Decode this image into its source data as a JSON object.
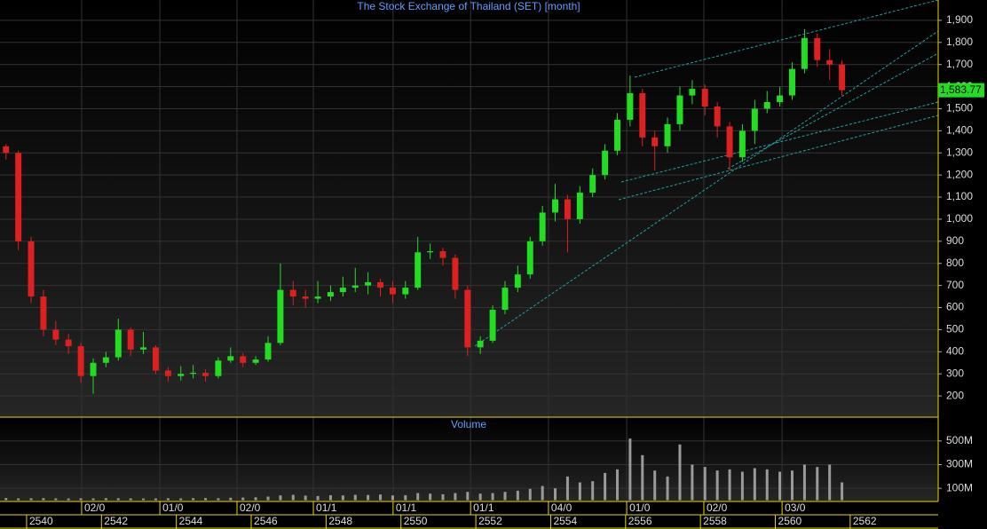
{
  "chart_data": {
    "type": "candlestick",
    "title": "The Stock Exchange of Thailand (SET) [month]",
    "volume_title": "Volume",
    "colors": {
      "up": "#22dd22",
      "down": "#dd2020",
      "volume": "#9a9a9a",
      "last": "#22dd22"
    },
    "x": [
      2539.45,
      2539.78,
      2540.12,
      2540.45,
      2540.78,
      2541.12,
      2541.45,
      2541.78,
      2542.12,
      2542.45,
      2542.78,
      2543.12,
      2543.45,
      2543.78,
      2544.12,
      2544.45,
      2544.78,
      2545.12,
      2545.45,
      2545.78,
      2546.12,
      2546.45,
      2546.78,
      2547.12,
      2547.45,
      2547.78,
      2548.12,
      2548.45,
      2548.78,
      2549.12,
      2549.45,
      2549.78,
      2550.12,
      2550.45,
      2550.78,
      2551.12,
      2551.45,
      2551.78,
      2552.12,
      2552.45,
      2552.78,
      2553.12,
      2553.45,
      2553.78,
      2554.12,
      2554.45,
      2554.78,
      2555.12,
      2555.45,
      2555.78,
      2556.12,
      2556.45,
      2556.78,
      2557.12,
      2557.45,
      2557.78,
      2558.12,
      2558.45,
      2558.78,
      2559.12,
      2559.45,
      2559.78,
      2560.12,
      2560.45,
      2560.78,
      2561.12,
      2561.45,
      2561.78
    ],
    "open": [
      1330,
      1300,
      900,
      650,
      500,
      455,
      425,
      290,
      350,
      375,
      500,
      410,
      420,
      315,
      290,
      300,
      305,
      290,
      360,
      380,
      350,
      365,
      440,
      680,
      650,
      640,
      650,
      670,
      690,
      700,
      715,
      690,
      660,
      690,
      850,
      855,
      825,
      680,
      420,
      450,
      590,
      690,
      750,
      900,
      1030,
      1090,
      1000,
      1120,
      1200,
      1310,
      1450,
      1570,
      1370,
      1330,
      1430,
      1560,
      1590,
      1510,
      1420,
      1280,
      1400,
      1500,
      1530,
      1560,
      1680,
      1820,
      1720,
      1700
    ],
    "high": [
      1340,
      1310,
      920,
      680,
      540,
      480,
      440,
      370,
      400,
      550,
      510,
      490,
      430,
      330,
      335,
      340,
      320,
      375,
      420,
      395,
      380,
      470,
      800,
      720,
      680,
      720,
      700,
      740,
      780,
      760,
      730,
      720,
      720,
      920,
      890,
      870,
      840,
      700,
      470,
      610,
      720,
      790,
      920,
      1060,
      1160,
      1110,
      1150,
      1230,
      1340,
      1480,
      1650,
      1590,
      1400,
      1460,
      1600,
      1630,
      1610,
      1530,
      1440,
      1430,
      1540,
      1580,
      1600,
      1710,
      1860,
      1840,
      1770,
      1720
    ],
    "low": [
      1270,
      860,
      620,
      470,
      430,
      390,
      260,
      210,
      330,
      360,
      380,
      390,
      300,
      265,
      270,
      280,
      265,
      280,
      350,
      330,
      340,
      355,
      430,
      610,
      600,
      620,
      630,
      650,
      670,
      660,
      650,
      620,
      640,
      680,
      820,
      790,
      640,
      380,
      390,
      440,
      570,
      670,
      730,
      880,
      990,
      850,
      980,
      1100,
      1180,
      1290,
      1420,
      1330,
      1220,
      1300,
      1400,
      1520,
      1470,
      1370,
      1220,
      1260,
      1340,
      1480,
      1510,
      1540,
      1660,
      1690,
      1630,
      1560
    ],
    "close": [
      1300,
      900,
      650,
      500,
      455,
      425,
      290,
      350,
      375,
      500,
      410,
      420,
      315,
      290,
      300,
      305,
      290,
      360,
      380,
      350,
      365,
      440,
      680,
      650,
      640,
      650,
      670,
      690,
      700,
      715,
      690,
      660,
      690,
      850,
      855,
      825,
      680,
      420,
      450,
      590,
      690,
      750,
      900,
      1030,
      1090,
      1000,
      1120,
      1200,
      1310,
      1450,
      1570,
      1370,
      1330,
      1430,
      1560,
      1590,
      1510,
      1420,
      1280,
      1400,
      1500,
      1530,
      1560,
      1680,
      1820,
      1720,
      1700,
      1583.77
    ],
    "volume": [
      18,
      15,
      16,
      17,
      15,
      14,
      16,
      15,
      17,
      16,
      15,
      14,
      15,
      16,
      15,
      17,
      18,
      16,
      20,
      22,
      24,
      30,
      40,
      45,
      38,
      35,
      42,
      40,
      45,
      44,
      48,
      40,
      42,
      60,
      55,
      50,
      60,
      70,
      55,
      60,
      70,
      80,
      95,
      120,
      100,
      200,
      150,
      160,
      230,
      260,
      520,
      380,
      250,
      200,
      470,
      300,
      280,
      250,
      260,
      240,
      270,
      260,
      240,
      250,
      300,
      280,
      300,
      150
    ],
    "last_value": {
      "value": 1583.77,
      "label": "1,583.77"
    },
    "xlim": [
      2539.29,
      2564.35
    ],
    "xticks": [
      2540,
      2542,
      2544,
      2546,
      2548,
      2550,
      2552,
      2554,
      2556,
      2558,
      2560,
      2562
    ],
    "xticks_top": [
      {
        "value": 2541.47,
        "label": "02/0"
      },
      {
        "value": 2543.56,
        "label": "01/0"
      },
      {
        "value": 2545.62,
        "label": "02/0"
      },
      {
        "value": 2547.66,
        "label": "01/1"
      },
      {
        "value": 2549.79,
        "label": "01/1"
      },
      {
        "value": 2551.86,
        "label": "01/1"
      },
      {
        "value": 2553.94,
        "label": "04/0"
      },
      {
        "value": 2556.03,
        "label": "01/0"
      },
      {
        "value": 2558.09,
        "label": "02/0"
      },
      {
        "value": 2560.18,
        "label": "03/0"
      }
    ],
    "ylim": [
      104,
      1992
    ],
    "yticks": [
      200,
      300,
      400,
      500,
      600,
      700,
      800,
      900,
      {
        "value": 1000,
        "label": "1,000"
      },
      {
        "value": 1100,
        "label": "1,100"
      },
      {
        "value": 1200,
        "label": "1,200"
      },
      {
        "value": 1300,
        "label": "1,300"
      },
      {
        "value": 1400,
        "label": "1,400"
      },
      {
        "value": 1500,
        "label": "1,500"
      },
      {
        "value": 1600,
        "label": "1,600"
      },
      {
        "value": 1700,
        "label": "1,700"
      },
      {
        "value": 1800,
        "label": "1,800"
      },
      {
        "value": 1900,
        "label": "1,900"
      }
    ],
    "y2lim": [
      -11,
      693
    ],
    "y2ticks": [
      {
        "value": 100,
        "label": "100M"
      },
      {
        "value": 300,
        "label": "300M"
      },
      {
        "value": 500,
        "label": "500M"
      }
    ],
    "grid": true
  }
}
